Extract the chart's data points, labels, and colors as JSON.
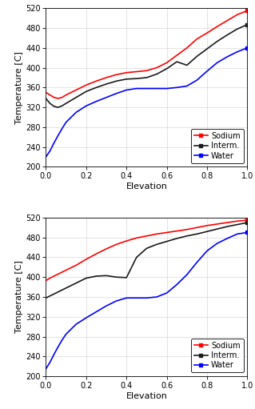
{
  "top": {
    "sodium": {
      "x": [
        0.0,
        0.02,
        0.04,
        0.06,
        0.08,
        0.1,
        0.15,
        0.2,
        0.25,
        0.3,
        0.35,
        0.4,
        0.45,
        0.5,
        0.55,
        0.6,
        0.65,
        0.7,
        0.75,
        0.8,
        0.85,
        0.9,
        0.95,
        1.0
      ],
      "y": [
        350,
        345,
        340,
        338,
        340,
        345,
        355,
        365,
        373,
        380,
        386,
        390,
        392,
        394,
        400,
        410,
        425,
        440,
        458,
        470,
        483,
        495,
        507,
        515
      ]
    },
    "interm": {
      "x": [
        0.0,
        0.02,
        0.04,
        0.06,
        0.08,
        0.1,
        0.15,
        0.2,
        0.25,
        0.3,
        0.35,
        0.4,
        0.45,
        0.5,
        0.55,
        0.6,
        0.65,
        0.7,
        0.75,
        0.8,
        0.85,
        0.9,
        0.95,
        1.0
      ],
      "y": [
        338,
        328,
        322,
        320,
        323,
        328,
        340,
        352,
        360,
        367,
        373,
        377,
        378,
        380,
        387,
        398,
        412,
        405,
        423,
        438,
        453,
        466,
        478,
        487
      ]
    },
    "water": {
      "x": [
        0.0,
        0.02,
        0.04,
        0.06,
        0.08,
        0.1,
        0.15,
        0.2,
        0.25,
        0.3,
        0.35,
        0.4,
        0.45,
        0.5,
        0.55,
        0.6,
        0.65,
        0.7,
        0.75,
        0.8,
        0.85,
        0.9,
        0.95,
        1.0
      ],
      "y": [
        220,
        232,
        248,
        263,
        277,
        290,
        310,
        323,
        332,
        340,
        348,
        355,
        358,
        358,
        358,
        358,
        360,
        363,
        375,
        393,
        410,
        422,
        432,
        440
      ]
    },
    "ylim": [
      200,
      520
    ],
    "yticks": [
      200,
      240,
      280,
      320,
      360,
      400,
      440,
      480,
      520
    ],
    "ylabel": "Temperature [C]",
    "xlabel": "Elevation"
  },
  "bottom": {
    "sodium": {
      "x": [
        0.0,
        0.02,
        0.04,
        0.06,
        0.08,
        0.1,
        0.15,
        0.2,
        0.25,
        0.3,
        0.35,
        0.4,
        0.45,
        0.5,
        0.55,
        0.6,
        0.65,
        0.7,
        0.75,
        0.8,
        0.85,
        0.9,
        0.95,
        1.0
      ],
      "y": [
        393,
        398,
        402,
        406,
        410,
        414,
        424,
        436,
        447,
        457,
        466,
        473,
        479,
        483,
        487,
        490,
        493,
        496,
        500,
        504,
        507,
        510,
        513,
        515
      ]
    },
    "interm": {
      "x": [
        0.0,
        0.02,
        0.04,
        0.06,
        0.08,
        0.1,
        0.15,
        0.2,
        0.25,
        0.3,
        0.35,
        0.4,
        0.45,
        0.5,
        0.55,
        0.6,
        0.65,
        0.7,
        0.75,
        0.8,
        0.85,
        0.9,
        0.95,
        1.0
      ],
      "y": [
        358,
        362,
        366,
        370,
        374,
        378,
        388,
        398,
        402,
        403,
        400,
        399,
        440,
        458,
        466,
        472,
        478,
        483,
        487,
        492,
        497,
        502,
        506,
        510
      ]
    },
    "water": {
      "x": [
        0.0,
        0.02,
        0.04,
        0.06,
        0.08,
        0.1,
        0.15,
        0.2,
        0.25,
        0.3,
        0.35,
        0.4,
        0.45,
        0.5,
        0.55,
        0.6,
        0.65,
        0.7,
        0.75,
        0.8,
        0.85,
        0.9,
        0.95,
        1.0
      ],
      "y": [
        215,
        228,
        244,
        259,
        273,
        285,
        305,
        318,
        330,
        342,
        352,
        358,
        358,
        358,
        360,
        368,
        385,
        405,
        430,
        453,
        468,
        478,
        487,
        490
      ]
    },
    "ylim": [
      200,
      520
    ],
    "yticks": [
      200,
      240,
      280,
      320,
      360,
      400,
      440,
      480,
      520
    ],
    "ylabel": "Temperature [C]",
    "xlabel": "Elevation"
  },
  "sodium_color": "#ff0000",
  "interm_color": "#1a1a1a",
  "water_color": "#0000ff",
  "linewidth": 1.2,
  "marker": "s",
  "markersize": 3.5,
  "legend_sodium": "Sodium",
  "legend_interm": "Interm.",
  "legend_water": "Water",
  "bg_color": "#ffffff",
  "xlim": [
    0.0,
    1.0
  ],
  "xticks": [
    0.0,
    0.2,
    0.4,
    0.6,
    0.8,
    1.0
  ]
}
